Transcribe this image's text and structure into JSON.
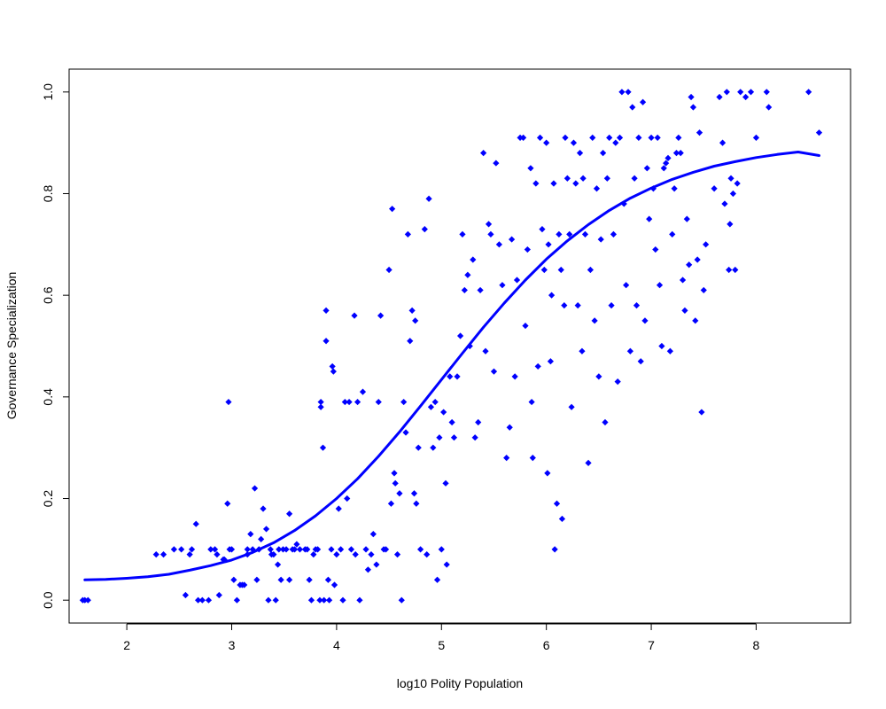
{
  "chart_data": {
    "type": "scatter",
    "title": "",
    "xlabel": "log10 Polity Population",
    "ylabel": "Governance Specialization",
    "xlim": [
      1.45,
      8.9
    ],
    "ylim": [
      -0.045,
      1.045
    ],
    "xticks": [
      2,
      3,
      4,
      5,
      6,
      7,
      8
    ],
    "yticks": [
      0.0,
      0.2,
      0.4,
      0.6,
      0.8,
      1.0
    ],
    "xtick_labels": [
      "2",
      "3",
      "4",
      "5",
      "6",
      "7",
      "8"
    ],
    "ytick_labels": [
      "0.0",
      "0.2",
      "0.4",
      "0.6",
      "0.8",
      "1.0"
    ],
    "grid": false,
    "legend": "none",
    "point_color": "#0000ff",
    "line_color": "#0000ff",
    "series": [
      {
        "type": "scatter",
        "points": [
          [
            1.6,
            0.0
          ],
          [
            1.63,
            0.0
          ],
          [
            1.58,
            0.0
          ],
          [
            2.28,
            0.09
          ],
          [
            2.35,
            0.09
          ],
          [
            2.45,
            0.1
          ],
          [
            2.52,
            0.1
          ],
          [
            2.6,
            0.09
          ],
          [
            2.62,
            0.1
          ],
          [
            2.56,
            0.01
          ],
          [
            2.66,
            0.15
          ],
          [
            2.68,
            0.0
          ],
          [
            2.72,
            0.0
          ],
          [
            2.78,
            0.0
          ],
          [
            2.8,
            0.1
          ],
          [
            2.84,
            0.1
          ],
          [
            2.86,
            0.09
          ],
          [
            2.88,
            0.01
          ],
          [
            2.92,
            0.08
          ],
          [
            2.93,
            0.08
          ],
          [
            2.97,
            0.39
          ],
          [
            2.96,
            0.19
          ],
          [
            2.98,
            0.1
          ],
          [
            3.0,
            0.1
          ],
          [
            3.02,
            0.04
          ],
          [
            3.05,
            0.0
          ],
          [
            3.08,
            0.03
          ],
          [
            3.1,
            0.03
          ],
          [
            3.12,
            0.03
          ],
          [
            3.15,
            0.09
          ],
          [
            3.15,
            0.1
          ],
          [
            3.18,
            0.13
          ],
          [
            3.2,
            0.1
          ],
          [
            3.22,
            0.22
          ],
          [
            3.24,
            0.04
          ],
          [
            3.26,
            0.1
          ],
          [
            3.28,
            0.12
          ],
          [
            3.3,
            0.18
          ],
          [
            3.33,
            0.14
          ],
          [
            3.35,
            0.0
          ],
          [
            3.37,
            0.1
          ],
          [
            3.38,
            0.09
          ],
          [
            3.4,
            0.09
          ],
          [
            3.42,
            0.0
          ],
          [
            3.44,
            0.07
          ],
          [
            3.45,
            0.1
          ],
          [
            3.47,
            0.04
          ],
          [
            3.49,
            0.1
          ],
          [
            3.52,
            0.1
          ],
          [
            3.55,
            0.04
          ],
          [
            3.55,
            0.17
          ],
          [
            3.58,
            0.1
          ],
          [
            3.6,
            0.1
          ],
          [
            3.62,
            0.11
          ],
          [
            3.65,
            0.1
          ],
          [
            3.7,
            0.1
          ],
          [
            3.72,
            0.1
          ],
          [
            3.74,
            0.04
          ],
          [
            3.76,
            0.0
          ],
          [
            3.78,
            0.09
          ],
          [
            3.8,
            0.1
          ],
          [
            3.82,
            0.1
          ],
          [
            3.84,
            0.0
          ],
          [
            3.85,
            0.39
          ],
          [
            3.85,
            0.38
          ],
          [
            3.87,
            0.3
          ],
          [
            3.88,
            0.0
          ],
          [
            3.9,
            0.57
          ],
          [
            3.9,
            0.51
          ],
          [
            3.92,
            0.04
          ],
          [
            3.93,
            0.0
          ],
          [
            3.95,
            0.1
          ],
          [
            3.96,
            0.46
          ],
          [
            3.97,
            0.45
          ],
          [
            3.98,
            0.03
          ],
          [
            4.0,
            0.09
          ],
          [
            4.02,
            0.18
          ],
          [
            4.04,
            0.1
          ],
          [
            4.06,
            0.0
          ],
          [
            4.08,
            0.39
          ],
          [
            4.1,
            0.2
          ],
          [
            4.12,
            0.39
          ],
          [
            4.14,
            0.1
          ],
          [
            4.17,
            0.56
          ],
          [
            4.18,
            0.09
          ],
          [
            4.2,
            0.39
          ],
          [
            4.22,
            0.0
          ],
          [
            4.25,
            0.41
          ],
          [
            4.28,
            0.1
          ],
          [
            4.3,
            0.06
          ],
          [
            4.33,
            0.09
          ],
          [
            4.35,
            0.13
          ],
          [
            4.38,
            0.07
          ],
          [
            4.4,
            0.39
          ],
          [
            4.42,
            0.56
          ],
          [
            4.45,
            0.1
          ],
          [
            4.47,
            0.1
          ],
          [
            4.5,
            0.65
          ],
          [
            4.52,
            0.19
          ],
          [
            4.53,
            0.77
          ],
          [
            4.55,
            0.25
          ],
          [
            4.56,
            0.23
          ],
          [
            4.58,
            0.09
          ],
          [
            4.6,
            0.21
          ],
          [
            4.62,
            0.0
          ],
          [
            4.64,
            0.39
          ],
          [
            4.66,
            0.33
          ],
          [
            4.68,
            0.72
          ],
          [
            4.7,
            0.51
          ],
          [
            4.72,
            0.57
          ],
          [
            4.74,
            0.21
          ],
          [
            4.75,
            0.55
          ],
          [
            4.76,
            0.19
          ],
          [
            4.78,
            0.3
          ],
          [
            4.8,
            0.1
          ],
          [
            4.84,
            0.73
          ],
          [
            4.86,
            0.09
          ],
          [
            4.88,
            0.79
          ],
          [
            4.9,
            0.38
          ],
          [
            4.92,
            0.3
          ],
          [
            4.94,
            0.39
          ],
          [
            4.96,
            0.04
          ],
          [
            4.98,
            0.32
          ],
          [
            5.0,
            0.1
          ],
          [
            5.02,
            0.37
          ],
          [
            5.04,
            0.23
          ],
          [
            5.05,
            0.07
          ],
          [
            5.08,
            0.44
          ],
          [
            5.1,
            0.35
          ],
          [
            5.12,
            0.32
          ],
          [
            5.15,
            0.44
          ],
          [
            5.18,
            0.52
          ],
          [
            5.2,
            0.72
          ],
          [
            5.22,
            0.61
          ],
          [
            5.25,
            0.64
          ],
          [
            5.27,
            0.5
          ],
          [
            5.3,
            0.67
          ],
          [
            5.32,
            0.32
          ],
          [
            5.35,
            0.35
          ],
          [
            5.37,
            0.61
          ],
          [
            5.4,
            0.88
          ],
          [
            5.42,
            0.49
          ],
          [
            5.45,
            0.74
          ],
          [
            5.47,
            0.72
          ],
          [
            5.5,
            0.45
          ],
          [
            5.52,
            0.86
          ],
          [
            5.55,
            0.7
          ],
          [
            5.58,
            0.62
          ],
          [
            5.62,
            0.28
          ],
          [
            5.65,
            0.34
          ],
          [
            5.67,
            0.71
          ],
          [
            5.7,
            0.44
          ],
          [
            5.72,
            0.63
          ],
          [
            5.75,
            0.91
          ],
          [
            5.78,
            0.91
          ],
          [
            5.8,
            0.54
          ],
          [
            5.82,
            0.69
          ],
          [
            5.85,
            0.85
          ],
          [
            5.86,
            0.39
          ],
          [
            5.87,
            0.28
          ],
          [
            5.9,
            0.82
          ],
          [
            5.92,
            0.46
          ],
          [
            5.94,
            0.91
          ],
          [
            5.96,
            0.73
          ],
          [
            5.98,
            0.65
          ],
          [
            6.0,
            0.9
          ],
          [
            6.01,
            0.25
          ],
          [
            6.02,
            0.7
          ],
          [
            6.04,
            0.47
          ],
          [
            6.05,
            0.6
          ],
          [
            6.07,
            0.82
          ],
          [
            6.08,
            0.1
          ],
          [
            6.1,
            0.19
          ],
          [
            6.12,
            0.72
          ],
          [
            6.14,
            0.65
          ],
          [
            6.15,
            0.16
          ],
          [
            6.17,
            0.58
          ],
          [
            6.18,
            0.91
          ],
          [
            6.2,
            0.83
          ],
          [
            6.22,
            0.72
          ],
          [
            6.24,
            0.38
          ],
          [
            6.26,
            0.9
          ],
          [
            6.28,
            0.82
          ],
          [
            6.3,
            0.58
          ],
          [
            6.32,
            0.88
          ],
          [
            6.34,
            0.49
          ],
          [
            6.35,
            0.83
          ],
          [
            6.37,
            0.72
          ],
          [
            6.4,
            0.27
          ],
          [
            6.42,
            0.65
          ],
          [
            6.44,
            0.91
          ],
          [
            6.46,
            0.55
          ],
          [
            6.48,
            0.81
          ],
          [
            6.5,
            0.44
          ],
          [
            6.52,
            0.71
          ],
          [
            6.54,
            0.88
          ],
          [
            6.56,
            0.35
          ],
          [
            6.58,
            0.83
          ],
          [
            6.6,
            0.91
          ],
          [
            6.62,
            0.58
          ],
          [
            6.64,
            0.72
          ],
          [
            6.66,
            0.9
          ],
          [
            6.68,
            0.43
          ],
          [
            6.7,
            0.91
          ],
          [
            6.72,
            1.0
          ],
          [
            6.74,
            0.78
          ],
          [
            6.76,
            0.62
          ],
          [
            6.78,
            1.0
          ],
          [
            6.8,
            0.49
          ],
          [
            6.82,
            0.97
          ],
          [
            6.84,
            0.83
          ],
          [
            6.86,
            0.58
          ],
          [
            6.88,
            0.91
          ],
          [
            6.9,
            0.47
          ],
          [
            6.92,
            0.98
          ],
          [
            6.94,
            0.55
          ],
          [
            6.96,
            0.85
          ],
          [
            6.98,
            0.75
          ],
          [
            7.0,
            0.91
          ],
          [
            7.02,
            0.81
          ],
          [
            7.04,
            0.69
          ],
          [
            7.06,
            0.91
          ],
          [
            7.08,
            0.62
          ],
          [
            7.1,
            0.5
          ],
          [
            7.12,
            0.85
          ],
          [
            7.14,
            0.86
          ],
          [
            7.16,
            0.87
          ],
          [
            7.18,
            0.49
          ],
          [
            7.2,
            0.72
          ],
          [
            7.22,
            0.81
          ],
          [
            7.24,
            0.88
          ],
          [
            7.26,
            0.91
          ],
          [
            7.28,
            0.88
          ],
          [
            7.3,
            0.63
          ],
          [
            7.32,
            0.57
          ],
          [
            7.34,
            0.75
          ],
          [
            7.36,
            0.66
          ],
          [
            7.38,
            0.99
          ],
          [
            7.4,
            0.97
          ],
          [
            7.42,
            0.55
          ],
          [
            7.44,
            0.67
          ],
          [
            7.46,
            0.92
          ],
          [
            7.48,
            0.37
          ],
          [
            7.5,
            0.61
          ],
          [
            7.52,
            0.7
          ],
          [
            7.6,
            0.81
          ],
          [
            7.65,
            0.99
          ],
          [
            7.68,
            0.9
          ],
          [
            7.7,
            0.78
          ],
          [
            7.72,
            1.0
          ],
          [
            7.74,
            0.65
          ],
          [
            7.75,
            0.74
          ],
          [
            7.76,
            0.83
          ],
          [
            7.78,
            0.8
          ],
          [
            7.8,
            0.65
          ],
          [
            7.82,
            0.82
          ],
          [
            7.85,
            1.0
          ],
          [
            7.9,
            0.99
          ],
          [
            7.95,
            1.0
          ],
          [
            8.0,
            0.91
          ],
          [
            8.1,
            1.0
          ],
          [
            8.12,
            0.97
          ],
          [
            8.5,
            1.0
          ],
          [
            8.6,
            0.92
          ]
        ]
      },
      {
        "type": "line",
        "points": [
          [
            1.6,
            0.04
          ],
          [
            1.8,
            0.041
          ],
          [
            2.0,
            0.043
          ],
          [
            2.2,
            0.046
          ],
          [
            2.4,
            0.051
          ],
          [
            2.6,
            0.059
          ],
          [
            2.8,
            0.068
          ],
          [
            3.0,
            0.079
          ],
          [
            3.2,
            0.094
          ],
          [
            3.4,
            0.113
          ],
          [
            3.6,
            0.137
          ],
          [
            3.8,
            0.166
          ],
          [
            4.0,
            0.2
          ],
          [
            4.2,
            0.239
          ],
          [
            4.4,
            0.283
          ],
          [
            4.6,
            0.331
          ],
          [
            4.8,
            0.382
          ],
          [
            5.0,
            0.434
          ],
          [
            5.2,
            0.486
          ],
          [
            5.4,
            0.537
          ],
          [
            5.6,
            0.585
          ],
          [
            5.8,
            0.63
          ],
          [
            6.0,
            0.671
          ],
          [
            6.2,
            0.707
          ],
          [
            6.4,
            0.739
          ],
          [
            6.6,
            0.767
          ],
          [
            6.8,
            0.791
          ],
          [
            7.0,
            0.811
          ],
          [
            7.2,
            0.828
          ],
          [
            7.4,
            0.842
          ],
          [
            7.6,
            0.854
          ],
          [
            7.8,
            0.863
          ],
          [
            8.0,
            0.871
          ],
          [
            8.2,
            0.877
          ],
          [
            8.4,
            0.882
          ],
          [
            8.6,
            0.875
          ]
        ]
      }
    ]
  }
}
